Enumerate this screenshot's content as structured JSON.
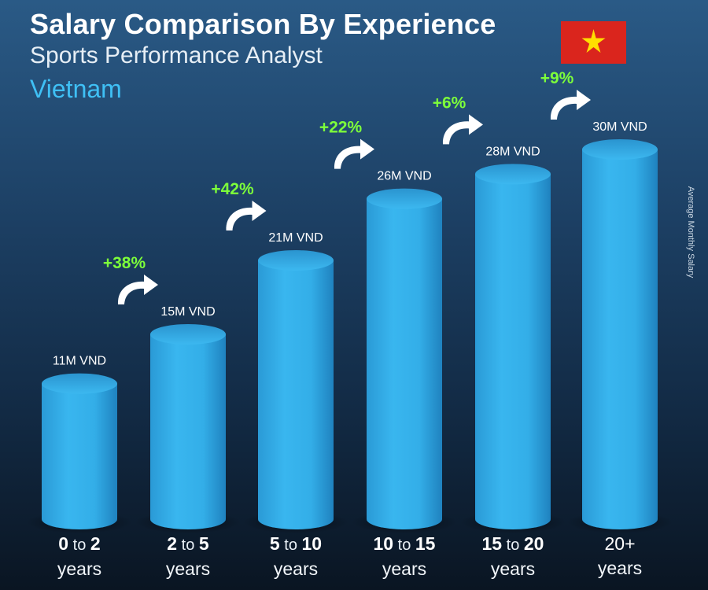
{
  "header": {
    "title": "Salary Comparison By Experience",
    "subtitle": "Sports Performance Analyst",
    "country": "Vietnam"
  },
  "side_label": "Average Monthly Salary",
  "colors": {
    "bar": "#33b1ec",
    "increase": "#7dff3a",
    "country": "#3fc0f5",
    "flag_red": "#da251d",
    "flag_star": "#ffdf00"
  },
  "chart_data": {
    "type": "bar",
    "ylabel": "Average Monthly Salary",
    "currency": "VND",
    "categories": [
      {
        "from": "0",
        "to": "2",
        "sep": "to",
        "unit": "years"
      },
      {
        "from": "2",
        "to": "5",
        "sep": "to",
        "unit": "years"
      },
      {
        "from": "5",
        "to": "10",
        "sep": "to",
        "unit": "years"
      },
      {
        "from": "10",
        "to": "15",
        "sep": "to",
        "unit": "years"
      },
      {
        "from": "15",
        "to": "20",
        "sep": "to",
        "unit": "years"
      },
      {
        "from": "20+",
        "to": "",
        "sep": "",
        "unit": "years"
      }
    ],
    "values": [
      11,
      15,
      21,
      26,
      28,
      30
    ],
    "value_labels": [
      "11M VND",
      "15M VND",
      "21M VND",
      "26M VND",
      "28M VND",
      "30M VND"
    ],
    "increases": [
      "+38%",
      "+42%",
      "+22%",
      "+6%",
      "+9%"
    ],
    "ylim": [
      0,
      30
    ]
  }
}
